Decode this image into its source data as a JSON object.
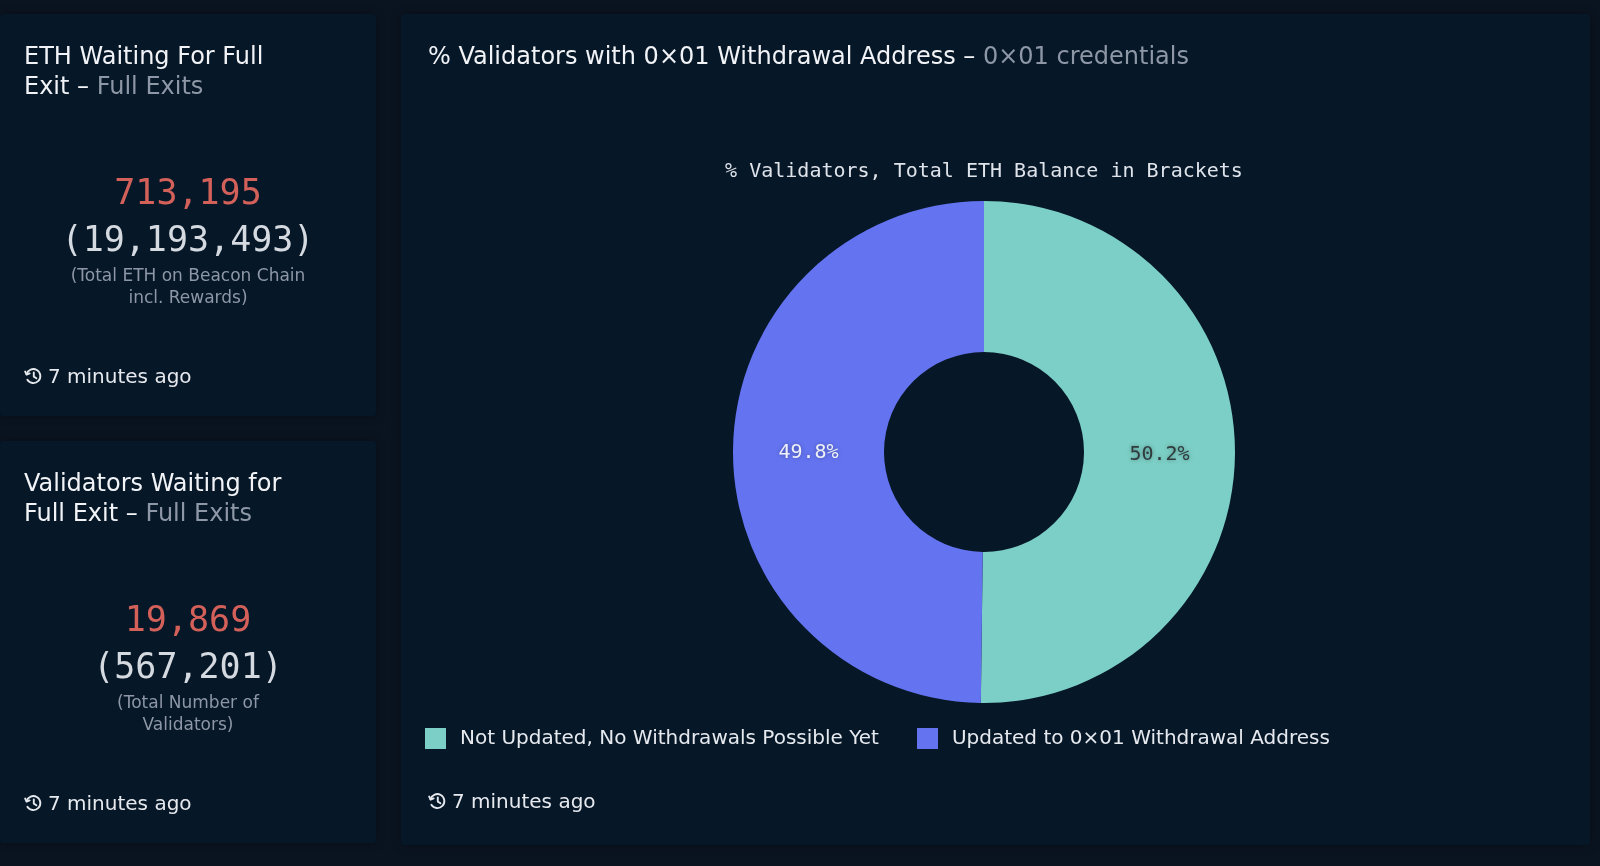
{
  "chart_data": [
    {
      "type": "other",
      "title": "ETH Waiting For Full Exit –",
      "subtitle": "Full Exits",
      "annotations": [
        "713,195",
        "(19,193,493)",
        "(Total ETH on Beacon Chain incl. Rewards)",
        "7 minutes ago"
      ]
    },
    {
      "type": "other",
      "title": "Validators Waiting for Full Exit –",
      "subtitle": "Full Exits",
      "annotations": [
        "19,869",
        "(567,201)",
        "(Total Number of Validators)",
        "7 minutes ago"
      ]
    },
    {
      "type": "donut",
      "title": "% Validators with 0×01 Withdrawal Address –",
      "subtitle": "0×01 credentials",
      "annotations": [
        "% Validators, Total ETH Balance in Brackets",
        "7 minutes ago"
      ],
      "categories": [
        "Not Updated, No Withdrawals Possible Yet",
        "Updated to 0×01 Withdrawal Address"
      ],
      "values": [
        50.2,
        49.8
      ],
      "colors": [
        "#7ccfc6",
        "#6474f1"
      ],
      "value_labels": [
        "50.2%",
        "49.8%"
      ],
      "legend": "bottom left"
    }
  ]
}
